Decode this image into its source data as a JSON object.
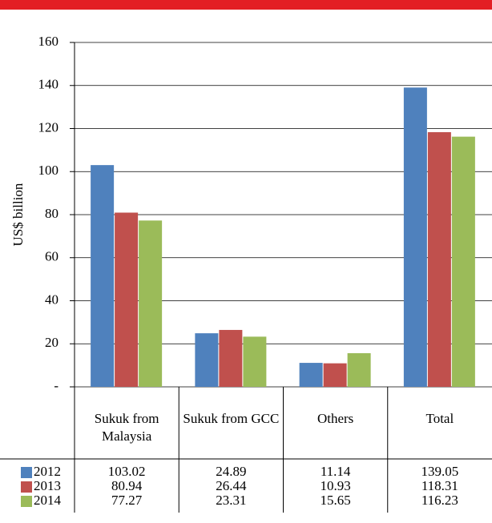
{
  "chart_data": {
    "type": "bar",
    "y_label": "US$ billion",
    "categories": [
      "Sukuk from Malaysia",
      "Sukuk from GCC",
      "Others",
      "Total"
    ],
    "series": [
      {
        "name": "2012",
        "color": "#4f81bd",
        "values": [
          103.02,
          24.89,
          11.14,
          139.05
        ]
      },
      {
        "name": "2013",
        "color": "#c0504d",
        "values": [
          80.94,
          26.44,
          10.93,
          118.31
        ]
      },
      {
        "name": "2014",
        "color": "#9bbb59",
        "values": [
          77.27,
          23.31,
          15.65,
          116.23
        ]
      }
    ],
    "ylim": [
      0,
      160
    ],
    "yticks": [
      {
        "value": 0,
        "label": "-"
      },
      20,
      40,
      60,
      80,
      100,
      120,
      140,
      160
    ],
    "grid": true
  }
}
